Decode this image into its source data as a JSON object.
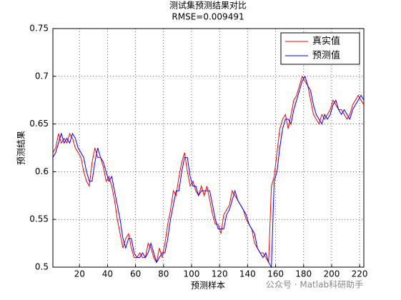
{
  "chart_data": {
    "type": "line",
    "title": "测试集预测结果对比",
    "subtitle": "RMSE=0.009491",
    "x_label": "预测样本",
    "y_label": "预测结果",
    "watermark": "公众号 · Matlab科研助手",
    "x": [
      1,
      3,
      5,
      7,
      9,
      11,
      13,
      15,
      17,
      19,
      21,
      23,
      25,
      27,
      29,
      31,
      33,
      35,
      37,
      39,
      41,
      43,
      45,
      47,
      49,
      51,
      53,
      55,
      57,
      59,
      61,
      63,
      65,
      67,
      69,
      71,
      73,
      75,
      77,
      79,
      81,
      83,
      85,
      87,
      89,
      91,
      93,
      95,
      97,
      99,
      101,
      103,
      105,
      107,
      109,
      111,
      113,
      115,
      117,
      119,
      121,
      123,
      125,
      127,
      129,
      131,
      133,
      135,
      137,
      139,
      141,
      143,
      145,
      147,
      149,
      151,
      153,
      155,
      157,
      159,
      161,
      163,
      165,
      167,
      169,
      171,
      173,
      175,
      177,
      179,
      181,
      183,
      185,
      187,
      189,
      191,
      193,
      195,
      197,
      199,
      201,
      203,
      205,
      207,
      209,
      211,
      213,
      215,
      217,
      219,
      221,
      223
    ],
    "series": [
      {
        "name": "真实值",
        "color": "#ff0000",
        "values": [
          0.62,
          0.625,
          0.64,
          0.63,
          0.635,
          0.63,
          0.64,
          0.635,
          0.625,
          0.62,
          0.615,
          0.6,
          0.59,
          0.585,
          0.61,
          0.625,
          0.615,
          0.615,
          0.605,
          0.59,
          0.595,
          0.585,
          0.57,
          0.55,
          0.535,
          0.52,
          0.53,
          0.535,
          0.52,
          0.51,
          0.51,
          0.515,
          0.51,
          0.51,
          0.525,
          0.52,
          0.51,
          0.505,
          0.52,
          0.51,
          0.525,
          0.545,
          0.56,
          0.58,
          0.575,
          0.595,
          0.61,
          0.62,
          0.6,
          0.585,
          0.59,
          0.58,
          0.575,
          0.585,
          0.575,
          0.585,
          0.57,
          0.555,
          0.545,
          0.545,
          0.535,
          0.555,
          0.56,
          0.565,
          0.58,
          0.575,
          0.57,
          0.565,
          0.56,
          0.55,
          0.545,
          0.54,
          0.525,
          0.52,
          0.515,
          0.515,
          0.51,
          0.505,
          0.585,
          0.595,
          0.62,
          0.645,
          0.655,
          0.66,
          0.645,
          0.66,
          0.675,
          0.68,
          0.69,
          0.7,
          0.695,
          0.69,
          0.675,
          0.66,
          0.655,
          0.65,
          0.66,
          0.655,
          0.66,
          0.665,
          0.675,
          0.67,
          0.665,
          0.665,
          0.66,
          0.655,
          0.66,
          0.67,
          0.675,
          0.68,
          0.675,
          0.67
        ]
      },
      {
        "name": "预测值",
        "color": "#0000ff",
        "values": [
          0.615,
          0.62,
          0.63,
          0.64,
          0.63,
          0.635,
          0.63,
          0.64,
          0.635,
          0.625,
          0.62,
          0.615,
          0.6,
          0.59,
          0.59,
          0.61,
          0.625,
          0.615,
          0.61,
          0.6,
          0.59,
          0.595,
          0.58,
          0.565,
          0.55,
          0.53,
          0.52,
          0.53,
          0.53,
          0.515,
          0.51,
          0.51,
          0.515,
          0.51,
          0.515,
          0.525,
          0.515,
          0.505,
          0.51,
          0.515,
          0.515,
          0.53,
          0.55,
          0.565,
          0.58,
          0.58,
          0.6,
          0.615,
          0.615,
          0.595,
          0.585,
          0.585,
          0.575,
          0.58,
          0.58,
          0.58,
          0.58,
          0.565,
          0.55,
          0.54,
          0.54,
          0.54,
          0.555,
          0.56,
          0.57,
          0.58,
          0.57,
          0.565,
          0.56,
          0.555,
          0.545,
          0.54,
          0.535,
          0.52,
          0.515,
          0.51,
          0.515,
          0.505,
          0.5,
          0.59,
          0.6,
          0.625,
          0.645,
          0.655,
          0.655,
          0.65,
          0.665,
          0.675,
          0.685,
          0.695,
          0.7,
          0.69,
          0.685,
          0.67,
          0.66,
          0.655,
          0.65,
          0.66,
          0.655,
          0.66,
          0.67,
          0.675,
          0.665,
          0.66,
          0.665,
          0.66,
          0.655,
          0.665,
          0.67,
          0.675,
          0.68,
          0.675
        ]
      }
    ],
    "xlim": [
      1,
      223
    ],
    "ylim": [
      0.5,
      0.75
    ],
    "xticks": [
      20,
      40,
      60,
      80,
      100,
      120,
      140,
      160,
      180,
      200,
      220
    ],
    "yticks": [
      0.5,
      0.55,
      0.6,
      0.65,
      0.7,
      0.75
    ],
    "grid": true,
    "legend": "upper right"
  }
}
